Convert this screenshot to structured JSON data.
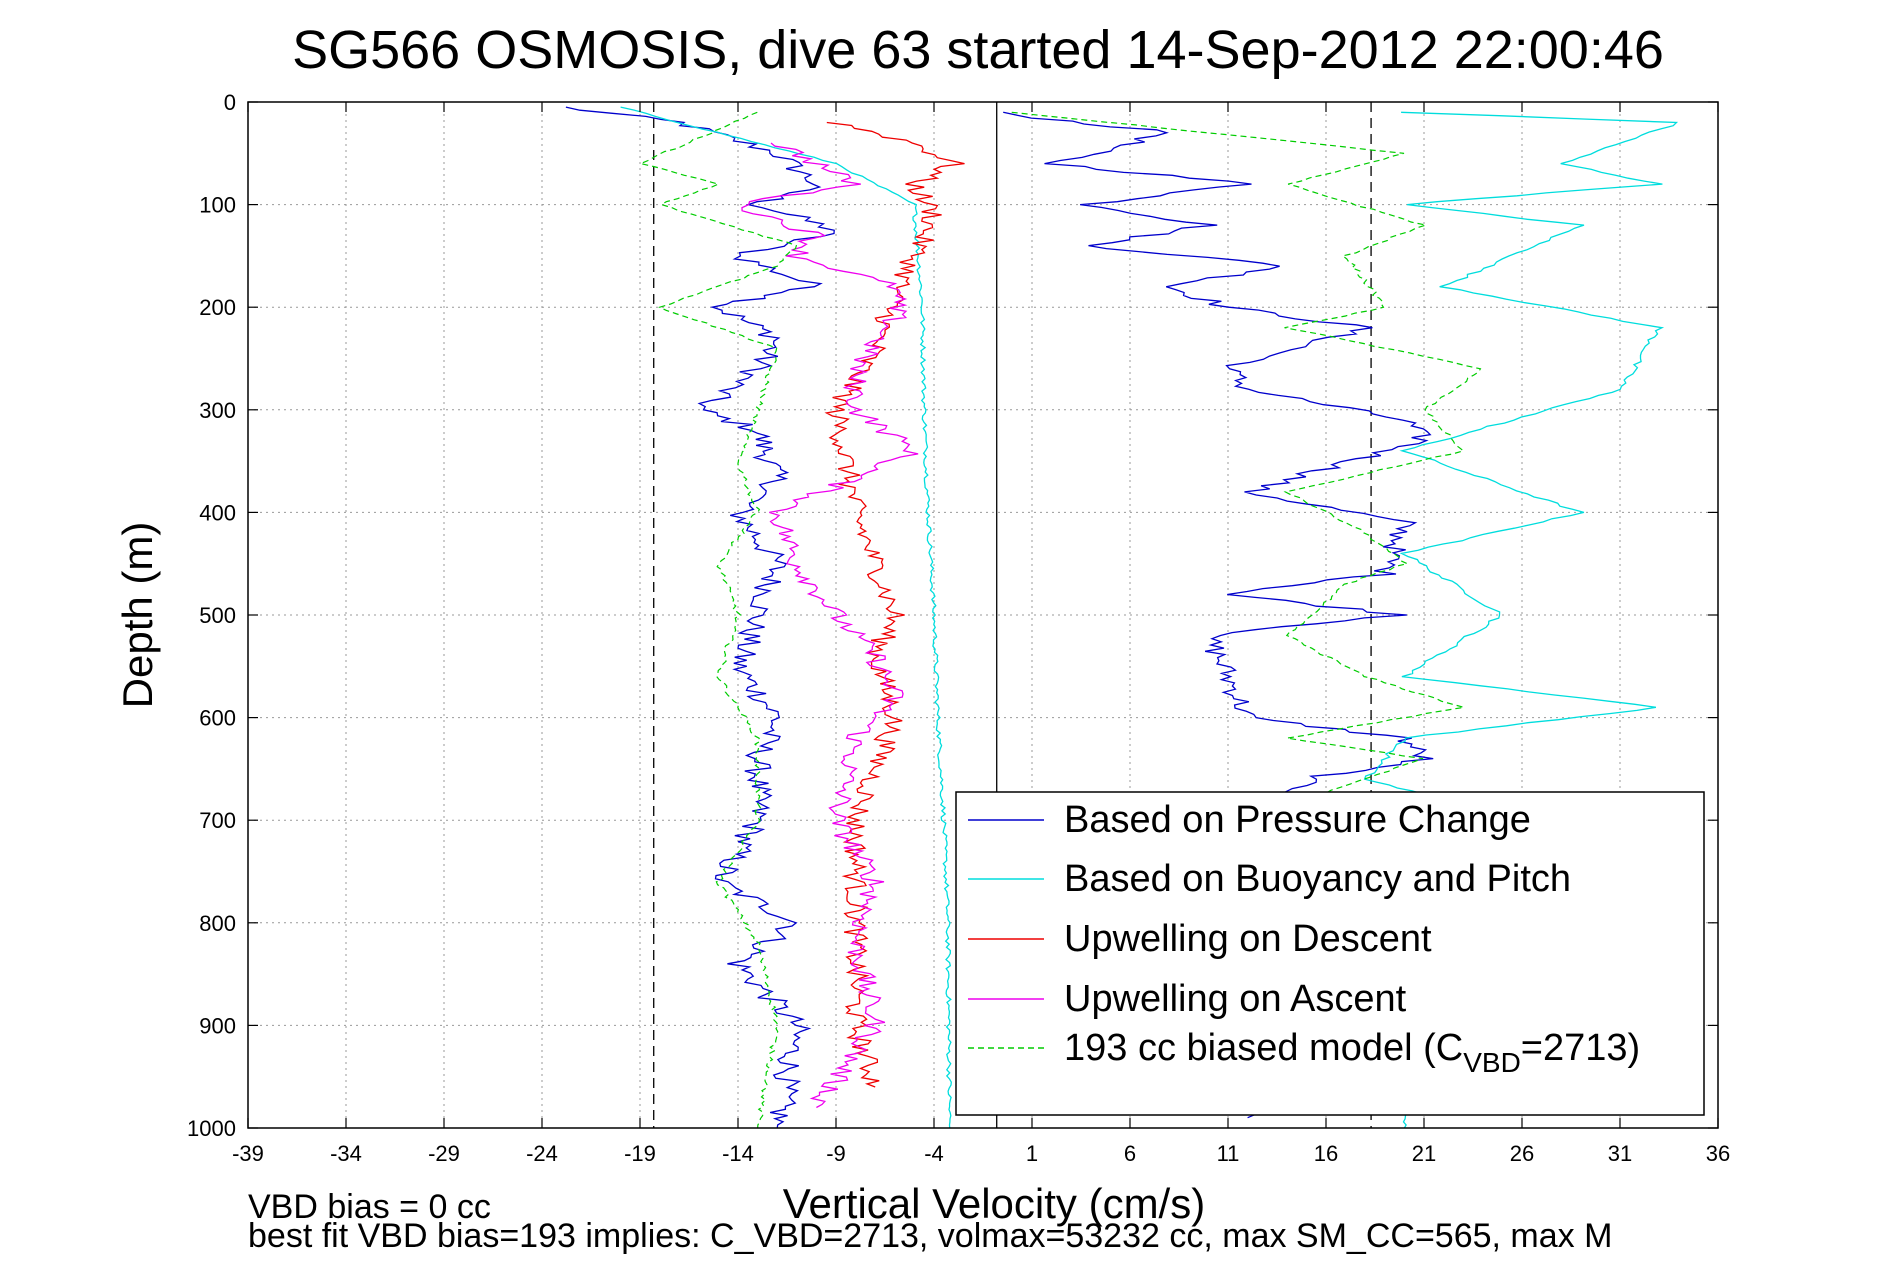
{
  "chart_data": {
    "type": "line",
    "title": "SG566 OSMOSIS, dive 63 started 14-Sep-2012 22:00:46",
    "xlabel": "Vertical Velocity (cm/s)",
    "ylabel": "Depth (m)",
    "xlim": [
      -39,
      36
    ],
    "ylim": [
      0,
      1000
    ],
    "y_reversed": true,
    "grid": true,
    "xticks": [
      -39,
      -34,
      -29,
      -24,
      -19,
      -14,
      -9,
      -4,
      1,
      6,
      11,
      16,
      21,
      26,
      31,
      36
    ],
    "yticks": [
      0,
      100,
      200,
      300,
      400,
      500,
      600,
      700,
      800,
      900,
      1000
    ],
    "legend_position": "bottom-right",
    "reference_lines": [
      {
        "x": -18.3,
        "style": "dashed",
        "color": "#000000"
      },
      {
        "x": -0.8,
        "style": "solid",
        "color": "#000000"
      },
      {
        "x": 18.3,
        "style": "dashed",
        "color": "#000000"
      }
    ],
    "series": [
      {
        "name": "Based on Pressure Change",
        "color": "#0000cc",
        "style": "solid",
        "x": [
          -23,
          -17,
          -12,
          -10,
          -13,
          -9,
          -14,
          -10,
          -15,
          -12,
          -13,
          -16,
          -13,
          -12,
          -14,
          -12,
          -13,
          -14,
          -12,
          -13,
          -13,
          -15,
          -11,
          -14,
          -11,
          -12
        ],
        "y": [
          5,
          20,
          50,
          80,
          100,
          125,
          150,
          180,
          200,
          230,
          260,
          300,
          320,
          370,
          400,
          450,
          500,
          550,
          600,
          640,
          700,
          760,
          800,
          840,
          900,
          1000
        ],
        "x_ascent": [
          -1,
          8,
          2,
          12,
          4,
          10,
          4,
          14,
          8,
          11,
          18,
          11,
          12,
          20,
          21,
          12,
          20,
          19,
          11,
          20,
          10,
          11,
          12,
          20,
          21,
          15,
          13,
          12
        ],
        "y_ascent": [
          10,
          30,
          60,
          80,
          100,
          120,
          140,
          160,
          180,
          200,
          220,
          260,
          280,
          310,
          330,
          380,
          410,
          460,
          480,
          500,
          520,
          560,
          600,
          620,
          640,
          660,
          700,
          990
        ]
      },
      {
        "name": "Based on Buoyancy and Pitch",
        "color": "#00dddd",
        "style": "solid",
        "x": [
          -20,
          -9,
          -5,
          -4.6,
          -4.5,
          -4.3,
          -4,
          -3.8,
          -3.5,
          -3.3,
          -3.2
        ],
        "y": [
          5,
          60,
          100,
          200,
          300,
          400,
          500,
          600,
          700,
          800,
          1000
        ],
        "x_ascent": [
          20,
          34,
          28,
          33,
          20,
          29,
          22,
          33,
          31,
          20,
          29,
          20,
          25,
          20,
          33,
          20,
          18,
          22,
          20
        ],
        "y_ascent": [
          10,
          20,
          60,
          80,
          100,
          120,
          180,
          220,
          280,
          340,
          400,
          440,
          500,
          560,
          590,
          620,
          660,
          680,
          1000
        ]
      },
      {
        "name": "Upwelling on Descent",
        "color": "#ee0000",
        "style": "solid",
        "x": [
          -9,
          -5,
          -3,
          -5,
          -4,
          -5,
          -6,
          -7,
          -9,
          -8,
          -6,
          -7,
          -6,
          -8,
          -8,
          -8,
          -7
        ],
        "y": [
          20,
          40,
          60,
          80,
          110,
          150,
          190,
          240,
          300,
          400,
          500,
          540,
          600,
          700,
          800,
          900,
          960
        ]
      },
      {
        "name": "Upwelling on Ascent",
        "color": "#ee00ee",
        "style": "solid",
        "x": [
          -12,
          -8,
          -14,
          -10,
          -11,
          -6,
          -6,
          -8,
          -8,
          -5,
          -12,
          -11,
          -9,
          -7,
          -6,
          -8,
          -9,
          -7,
          -8,
          -7,
          -10
        ],
        "y": [
          40,
          80,
          100,
          130,
          150,
          180,
          210,
          260,
          300,
          340,
          400,
          450,
          500,
          540,
          580,
          620,
          700,
          760,
          820,
          900,
          980
        ]
      },
      {
        "name": "193 cc biased model (C_VBD=2713)",
        "color": "#00cc00",
        "style": "dashed",
        "x": [
          -13,
          -19,
          -15,
          -18,
          -11,
          -12,
          -18,
          -12,
          -13,
          -14,
          -13,
          -15,
          -14,
          -15,
          -13,
          -13,
          -15,
          -13,
          -12,
          -13
        ],
        "y": [
          10,
          60,
          80,
          100,
          140,
          160,
          200,
          240,
          300,
          350,
          400,
          450,
          500,
          560,
          620,
          700,
          760,
          820,
          900,
          1000
        ],
        "x_ascent": [
          0,
          20,
          14,
          21,
          17,
          19,
          14,
          24,
          21,
          23,
          14,
          18,
          20,
          17,
          14,
          18,
          23,
          14,
          21,
          15
        ],
        "y_ascent": [
          10,
          50,
          80,
          120,
          150,
          200,
          220,
          260,
          300,
          340,
          380,
          420,
          450,
          470,
          520,
          560,
          590,
          620,
          640,
          680
        ]
      }
    ],
    "legend": [
      {
        "label": "Based on Pressure Change",
        "color": "#0000cc",
        "style": "solid"
      },
      {
        "label": "Based on Buoyancy and Pitch",
        "color": "#00dddd",
        "style": "solid"
      },
      {
        "label": "Upwelling on Descent",
        "color": "#ee0000",
        "style": "solid"
      },
      {
        "label": "Upwelling on Ascent",
        "color": "#ee00ee",
        "style": "solid"
      },
      {
        "label": "193 cc biased model (C",
        "sub": "VBD",
        "label_end": "=2713)",
        "color": "#00cc00",
        "style": "dashed"
      }
    ],
    "annotations": [
      "VBD bias = 0 cc",
      "best fit VBD bias=193 implies: C_VBD=2713, volmax=53232 cc, max SM_CC=565, max M"
    ]
  }
}
